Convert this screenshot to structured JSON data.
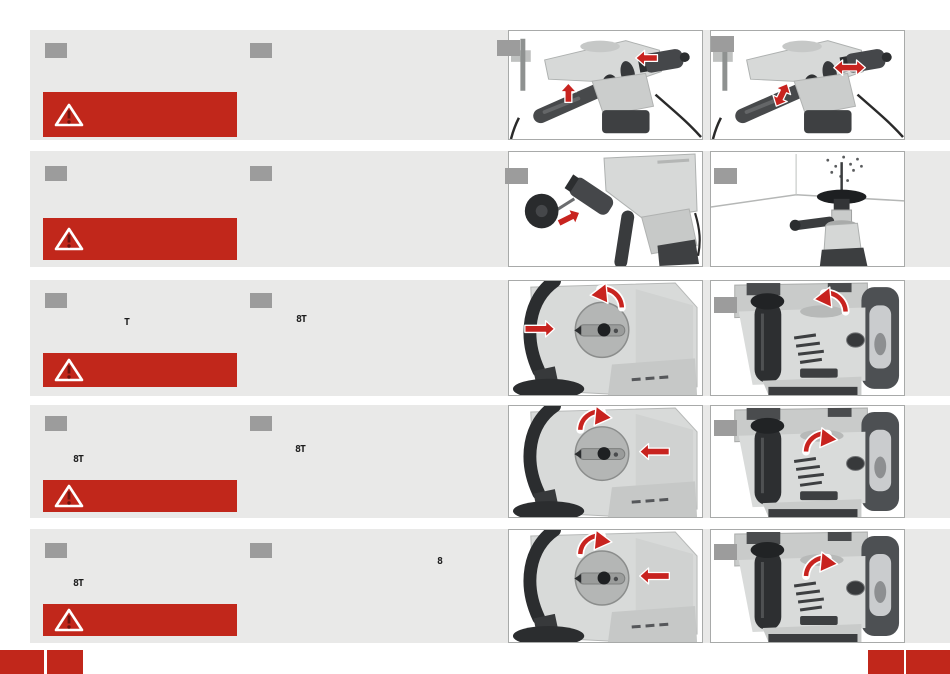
{
  "colors": {
    "page_bg": "#ffffff",
    "band_bg": "#e9e9e8",
    "placeholder_gray": "#9c9c9c",
    "warning_red": "#c1271b",
    "arrow_red": "#c8231f",
    "frame_border": "#a8aaa9",
    "photo_bg": "#ffffff"
  },
  "rows": [
    {
      "name": "step-row-1",
      "markers": [
        "step-number-placeholder",
        "step-number-placeholder"
      ],
      "warning_banner": {
        "icon": "warning-triangle-icon",
        "text": ""
      },
      "symbols": [],
      "photos": [
        {
          "name": "photo-side-handle-rotate",
          "type": "drill-side",
          "variant": "a",
          "corner_tab": true,
          "arrows": [
            "up-at-side-handle",
            "left-toward-chuck"
          ]
        },
        {
          "name": "photo-side-handle-slide",
          "type": "drill-side",
          "variant": "b",
          "corner_tab": true,
          "arrows": [
            "double-at-side-handle",
            "double-at-chuck"
          ]
        }
      ]
    },
    {
      "name": "step-row-2",
      "markers": [
        "step-number-placeholder",
        "step-number-placeholder"
      ],
      "warning_banner": {
        "icon": "warning-triangle-icon",
        "text": ""
      },
      "symbols": [],
      "photos": [
        {
          "name": "photo-dust-guard-attach",
          "type": "dust-guard",
          "variant": "a",
          "corner_tab": true,
          "arrows": [
            "toward-chuck"
          ]
        },
        {
          "name": "photo-overhead-drilling",
          "type": "ceiling",
          "variant": "a",
          "corner_tab": true,
          "arrows": []
        }
      ]
    },
    {
      "name": "step-row-3",
      "markers": [
        "step-number-placeholder",
        "step-number-placeholder"
      ],
      "warning_banner": {
        "icon": "warning-triangle-icon",
        "text": ""
      },
      "symbols": [
        {
          "position": "left-column",
          "text": "T"
        },
        {
          "position": "middle-column",
          "text": "8T"
        }
      ],
      "photos": [
        {
          "name": "photo-mode-dial-closeup",
          "type": "dial-closeup",
          "variant": "a",
          "corner_tab": false,
          "arrows": [
            "right-toward-dial",
            "rotate-dial"
          ]
        },
        {
          "name": "photo-body-side-view",
          "type": "side-view",
          "variant": "a",
          "corner_tab": true,
          "arrows": [
            "rotate-at-top"
          ]
        }
      ]
    },
    {
      "name": "step-row-4",
      "markers": [
        "step-number-placeholder",
        "step-number-placeholder"
      ],
      "warning_banner": {
        "icon": "warning-triangle-icon",
        "text": ""
      },
      "symbols": [
        {
          "position": "left-column",
          "text": "8T"
        },
        {
          "position": "middle-column",
          "text": "8T"
        }
      ],
      "photos": [
        {
          "name": "photo-mode-dial-closeup",
          "type": "dial-closeup",
          "variant": "b",
          "corner_tab": false,
          "arrows": [
            "rotate-dial",
            "left-toward-dial"
          ]
        },
        {
          "name": "photo-body-side-view",
          "type": "side-view",
          "variant": "b",
          "corner_tab": true,
          "arrows": [
            "rotate-at-selector"
          ]
        }
      ]
    },
    {
      "name": "step-row-5",
      "markers": [
        "step-number-placeholder",
        "step-number-placeholder"
      ],
      "warning_banner": {
        "icon": "warning-triangle-icon",
        "text": ""
      },
      "symbols": [
        {
          "position": "left-column",
          "text": "8T"
        },
        {
          "position": "middle-column-right",
          "text": "8"
        }
      ],
      "photos": [
        {
          "name": "photo-mode-dial-closeup",
          "type": "dial-closeup",
          "variant": "b",
          "corner_tab": false,
          "arrows": [
            "rotate-dial",
            "left-toward-dial"
          ]
        },
        {
          "name": "photo-body-side-view",
          "type": "side-view",
          "variant": "b",
          "corner_tab": true,
          "arrows": [
            "rotate-at-selector"
          ]
        }
      ]
    }
  ],
  "footer": {
    "page_markers": [
      "footer-marker-left-1",
      "footer-marker-left-2",
      "footer-marker-right-1",
      "footer-marker-right-2"
    ]
  }
}
